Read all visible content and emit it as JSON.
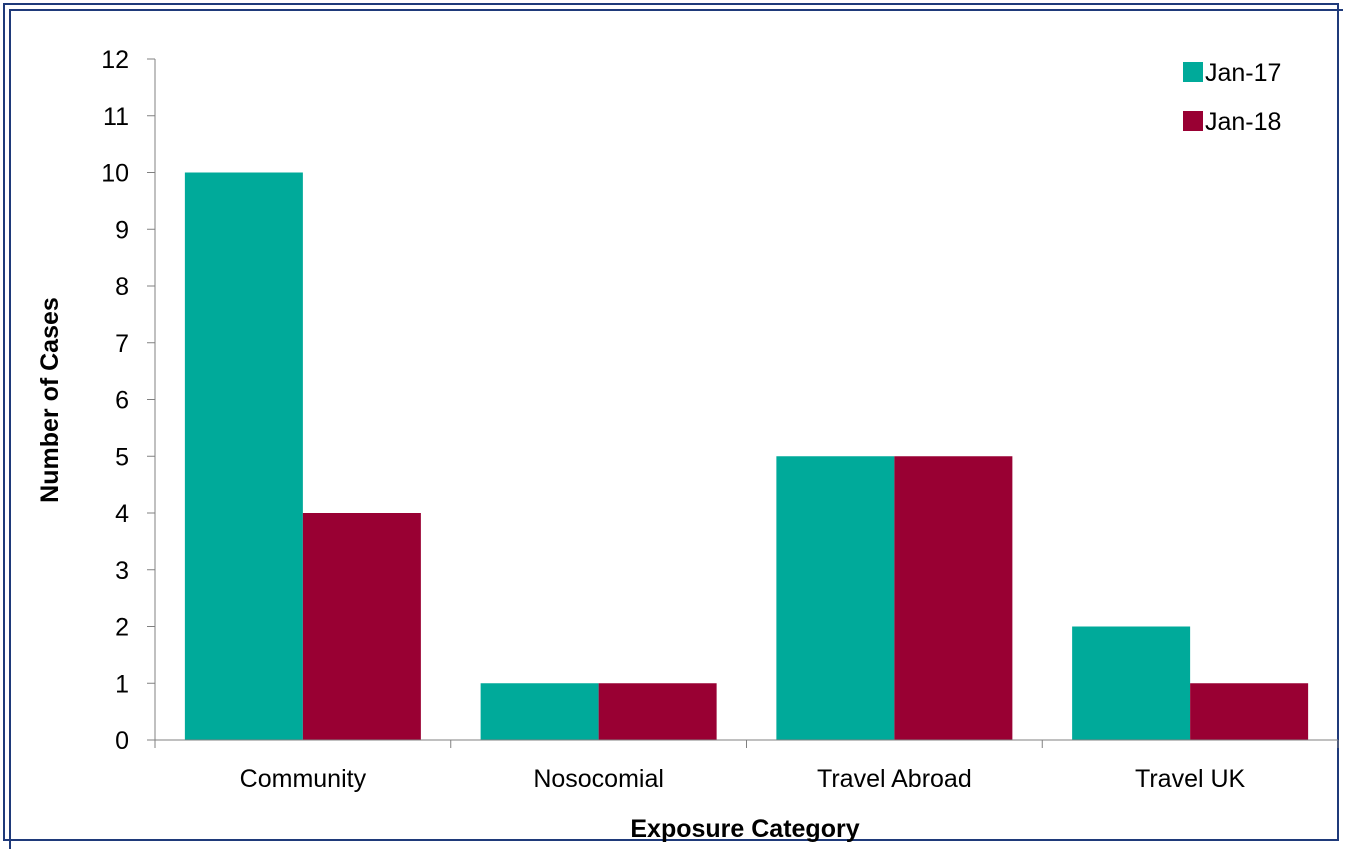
{
  "chart_data": {
    "type": "bar",
    "categories": [
      "Community",
      "Nosocomial",
      "Travel Abroad",
      "Travel UK"
    ],
    "series": [
      {
        "name": "Jan-17",
        "values": [
          10,
          1,
          5,
          2
        ],
        "color": "#00aa9a"
      },
      {
        "name": "Jan-18",
        "values": [
          4,
          1,
          5,
          1
        ],
        "color": "#990033"
      }
    ],
    "title": "",
    "xlabel": "Exposure Category",
    "ylabel": "Number of Cases",
    "ylim": [
      0,
      12
    ],
    "yticks": [
      "0",
      "1",
      "2",
      "3",
      "4",
      "5",
      "6",
      "7",
      "8",
      "9",
      "10",
      "11",
      "12"
    ],
    "grid": false,
    "legend_position": "top-right"
  },
  "colors": {
    "frame": "#1f3a7a",
    "axis": "#808080"
  }
}
